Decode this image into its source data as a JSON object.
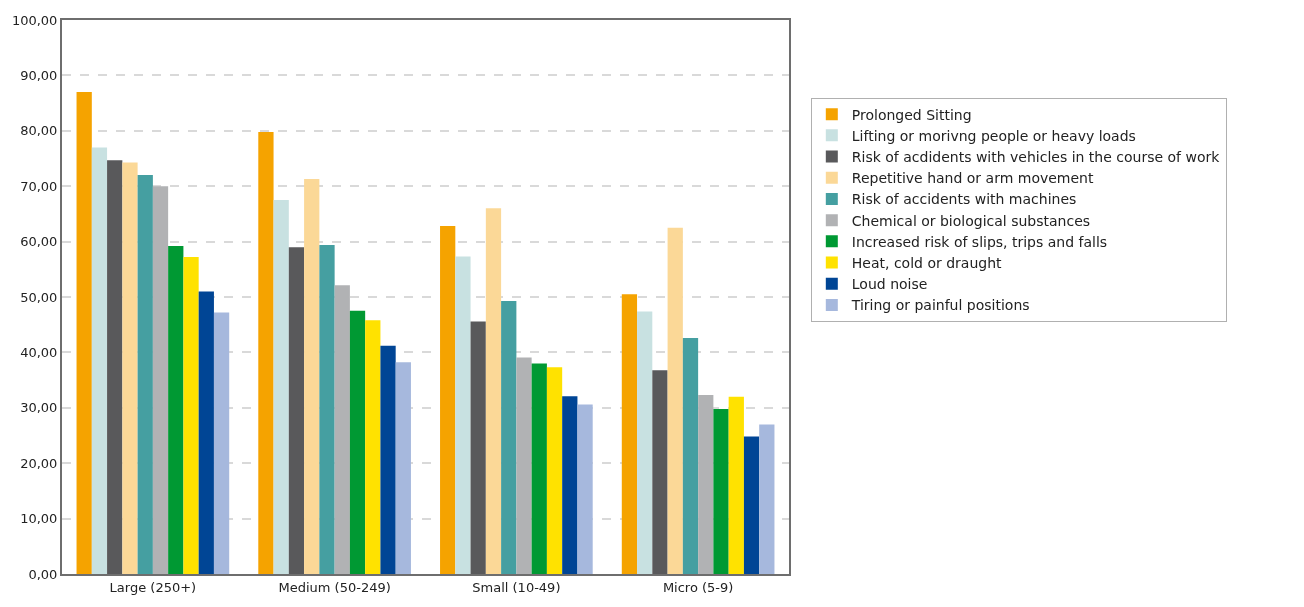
{
  "chart_data": {
    "type": "bar",
    "categories": [
      "Large (250+)",
      "Medium (50-249)",
      "Small (10-49)",
      "Micro (5-9)"
    ],
    "series": [
      {
        "name": "Prolonged Sitting",
        "color": "#f5a300",
        "values": [
          87.0,
          79.8,
          62.8,
          50.5
        ]
      },
      {
        "name": "Lifting or morivng people or heavy loads",
        "color": "#c8e1e1",
        "values": [
          77.0,
          67.5,
          57.3,
          47.4
        ]
      },
      {
        "name": "Risk of acdidents with vehicles in the course of work",
        "color": "#59595b",
        "values": [
          74.7,
          59.0,
          45.6,
          36.8
        ]
      },
      {
        "name": "Repetitive hand or arm movement",
        "color": "#fbd897",
        "values": [
          74.3,
          71.3,
          66.0,
          62.5
        ]
      },
      {
        "name": "Risk of accidents with machines",
        "color": "#459fa1",
        "values": [
          72.0,
          59.4,
          49.3,
          42.6
        ]
      },
      {
        "name": "Chemical or biological substances",
        "color": "#b1b2b4",
        "values": [
          70.0,
          52.1,
          39.1,
          32.3
        ]
      },
      {
        "name": "Increased risk of slips, trips and falls",
        "color": "#009933",
        "values": [
          59.2,
          47.5,
          38.0,
          29.8
        ]
      },
      {
        "name": "Heat, cold or draught",
        "color": "#ffe200",
        "values": [
          57.2,
          45.8,
          37.3,
          32.0
        ]
      },
      {
        "name": "Loud noise",
        "color": "#004595",
        "values": [
          51.0,
          41.2,
          32.1,
          24.8
        ]
      },
      {
        "name": "Tiring or painful positions",
        "color": "#a6b8dd",
        "values": [
          47.2,
          38.2,
          30.6,
          27.0
        ]
      }
    ],
    "ylim": [
      0,
      100
    ],
    "yticks": [
      {
        "value": 0,
        "label": "0,00"
      },
      {
        "value": 10,
        "label": "10,00"
      },
      {
        "value": 20,
        "label": "20,00"
      },
      {
        "value": 30,
        "label": "30,00"
      },
      {
        "value": 40,
        "label": "40,00"
      },
      {
        "value": 50,
        "label": "50,00"
      },
      {
        "value": 60,
        "label": "60,00"
      },
      {
        "value": 70,
        "label": "70,00"
      },
      {
        "value": 80,
        "label": "80,00"
      },
      {
        "value": 90,
        "label": "90,00"
      },
      {
        "value": 100,
        "label": "100,00"
      }
    ],
    "grid": "y",
    "legend": "right"
  }
}
